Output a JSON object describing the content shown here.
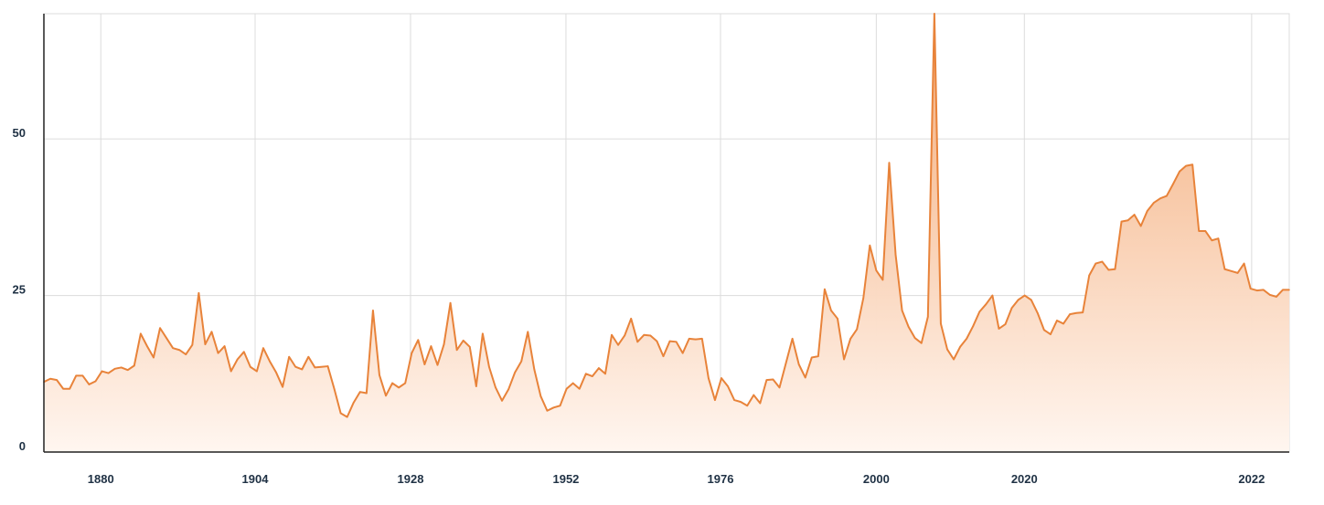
{
  "chart_data": {
    "type": "area",
    "title": "",
    "xlabel": "",
    "ylabel": "",
    "ylim": [
      0,
      70
    ],
    "y_ticks": [
      0,
      25,
      50
    ],
    "x_ticks": [
      "1880",
      "1904",
      "1928",
      "1952",
      "1976",
      "2000",
      "2020",
      "2022"
    ],
    "grid": true,
    "colors": {
      "line": "#e8833a",
      "fill_top": "#f3a873",
      "fill_bottom": "#fff6f0",
      "grid": "#dcdcdc",
      "axis": "#222222",
      "tick_text": "#1f3144"
    },
    "series": [
      {
        "values": [
          11.2,
          11.7,
          11.5,
          10.1,
          10.1,
          12.2,
          12.2,
          10.8,
          11.3,
          12.9,
          12.6,
          13.3,
          13.5,
          13.1,
          13.8,
          18.9,
          16.9,
          15.1,
          19.8,
          18.2,
          16.6,
          16.3,
          15.6,
          17.1,
          25.4,
          17.2,
          19.2,
          15.8,
          16.9,
          12.9,
          14.8,
          16.0,
          13.6,
          12.9,
          16.6,
          14.5,
          12.7,
          10.4,
          15.2,
          13.6,
          13.2,
          15.2,
          13.5,
          13.6,
          13.7,
          10.1,
          6.2,
          5.6,
          7.9,
          9.6,
          9.4,
          22.6,
          12.3,
          9.0,
          11.0,
          10.3,
          11.0,
          15.8,
          17.9,
          14.0,
          16.9,
          13.9,
          17.2,
          23.8,
          16.3,
          17.8,
          16.8,
          10.5,
          18.9,
          13.6,
          10.3,
          8.2,
          10.0,
          12.7,
          14.5,
          19.2,
          13.2,
          8.9,
          6.6,
          7.1,
          7.4,
          10.1,
          11.0,
          10.1,
          12.5,
          12.1,
          13.4,
          12.5,
          18.7,
          17.1,
          18.6,
          21.3,
          17.6,
          18.7,
          18.6,
          17.7,
          15.3,
          17.7,
          17.6,
          15.8,
          18.1,
          18.0,
          18.1,
          11.8,
          8.3,
          11.8,
          10.5,
          8.3,
          8.0,
          7.4,
          9.1,
          7.8,
          11.5,
          11.6,
          10.3,
          14.2,
          18.1,
          14.0,
          11.9,
          15.1,
          15.3,
          26.0,
          22.6,
          21.3,
          14.8,
          18.1,
          19.6,
          24.6,
          33.0,
          29.0,
          27.5,
          46.2,
          31.5,
          22.6,
          20.0,
          18.2,
          17.4,
          21.6,
          70.0,
          20.5,
          16.4,
          14.8,
          16.8,
          18.1,
          20.1,
          22.4,
          23.6,
          25.0,
          19.7,
          20.4,
          23.0,
          24.3,
          25.0,
          24.3,
          22.2,
          19.5,
          18.8,
          21.0,
          20.5,
          22.0,
          22.2,
          22.3,
          28.2,
          30.1,
          30.4,
          29.1,
          29.2,
          36.8,
          37.0,
          37.9,
          36.1,
          38.5,
          39.8,
          40.5,
          40.9,
          42.8,
          44.8,
          45.7,
          45.9,
          35.3,
          35.3,
          33.8,
          34.1,
          29.2,
          28.9,
          28.6,
          30.1,
          26.1,
          25.8,
          25.9,
          25.1,
          24.8,
          25.9,
          25.9
        ]
      }
    ]
  }
}
